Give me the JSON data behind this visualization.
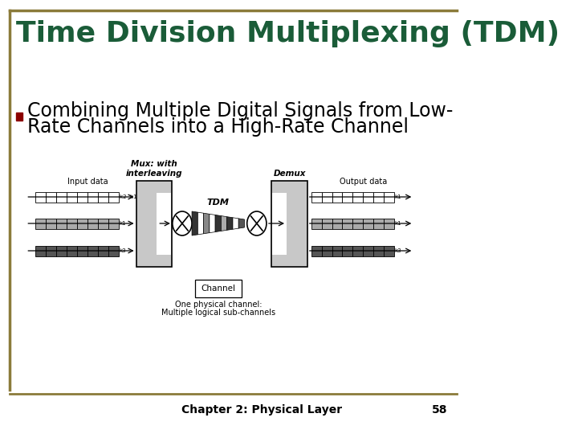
{
  "title": "Time Division Multiplexing (TDM)",
  "title_color": "#1a5c38",
  "title_fontsize": 26,
  "bullet_text_line1": "Combining Multiple Digital Signals from Low-",
  "bullet_text_line2": "Rate Channels into a High-Rate Channel",
  "bullet_color": "#8B0000",
  "bullet_fontsize": 17,
  "bg_color": "#ffffff",
  "border_color": "#8B7B3A",
  "footer_text": "Chapter 2: Physical Layer",
  "footer_page": "58",
  "footer_fontsize": 10,
  "mux_label": "Mux: with\ninterleaving",
  "demux_label": "Demux",
  "tdm_label": "TDM",
  "input_label": "Input data",
  "output_label": "Output data",
  "channel_label": "Channel",
  "channel_note1": "One physical channel:",
  "channel_note2": "Multiple logical sub-channels",
  "row1_color": "#ffffff",
  "row2_color": "#aaaaaa",
  "row3_color": "#555555",
  "box_bg": "#c8c8c8",
  "tdm_colors": [
    "#333333",
    "#ffffff",
    "#888888",
    "#ffffff",
    "#333333",
    "#aaaaaa",
    "#333333",
    "#ffffff",
    "#555555"
  ]
}
